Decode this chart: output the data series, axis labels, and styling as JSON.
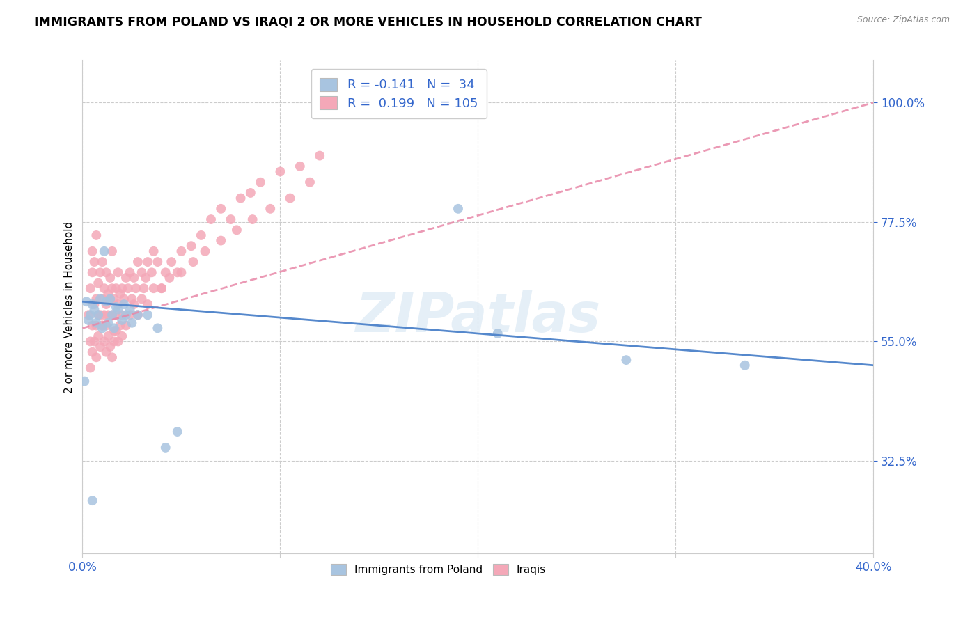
{
  "title": "IMMIGRANTS FROM POLAND VS IRAQI 2 OR MORE VEHICLES IN HOUSEHOLD CORRELATION CHART",
  "source": "Source: ZipAtlas.com",
  "ylabel": "2 or more Vehicles in Household",
  "ytick_labels": [
    "100.0%",
    "77.5%",
    "55.0%",
    "32.5%"
  ],
  "ytick_values": [
    1.0,
    0.775,
    0.55,
    0.325
  ],
  "xmin": 0.0,
  "xmax": 0.4,
  "ymin": 0.15,
  "ymax": 1.08,
  "color_poland": "#a8c4e0",
  "color_iraq": "#f4a8b8",
  "color_poland_line": "#5588cc",
  "color_iraq_line": "#e888a8",
  "color_text_blue": "#3366cc",
  "poland_x": [
    0.001,
    0.002,
    0.003,
    0.004,
    0.005,
    0.006,
    0.007,
    0.008,
    0.009,
    0.01,
    0.011,
    0.012,
    0.013,
    0.014,
    0.015,
    0.016,
    0.017,
    0.018,
    0.02,
    0.021,
    0.022,
    0.024,
    0.025,
    0.028,
    0.033,
    0.038,
    0.042,
    0.048,
    0.005,
    0.19,
    0.21,
    0.275,
    0.335
  ],
  "poland_y": [
    0.475,
    0.625,
    0.59,
    0.6,
    0.62,
    0.61,
    0.585,
    0.6,
    0.63,
    0.575,
    0.72,
    0.625,
    0.585,
    0.63,
    0.6,
    0.575,
    0.615,
    0.61,
    0.59,
    0.62,
    0.6,
    0.61,
    0.585,
    0.6,
    0.6,
    0.575,
    0.35,
    0.38,
    0.25,
    0.8,
    0.565,
    0.515,
    0.505
  ],
  "iraq_x": [
    0.003,
    0.004,
    0.004,
    0.005,
    0.005,
    0.005,
    0.006,
    0.006,
    0.007,
    0.007,
    0.007,
    0.008,
    0.008,
    0.009,
    0.009,
    0.01,
    0.01,
    0.01,
    0.011,
    0.011,
    0.012,
    0.012,
    0.012,
    0.013,
    0.013,
    0.014,
    0.014,
    0.015,
    0.015,
    0.015,
    0.016,
    0.016,
    0.017,
    0.017,
    0.018,
    0.018,
    0.019,
    0.02,
    0.02,
    0.021,
    0.022,
    0.023,
    0.024,
    0.025,
    0.026,
    0.027,
    0.028,
    0.03,
    0.031,
    0.032,
    0.033,
    0.035,
    0.036,
    0.038,
    0.04,
    0.042,
    0.045,
    0.048,
    0.05,
    0.055,
    0.06,
    0.065,
    0.07,
    0.075,
    0.08,
    0.085,
    0.09,
    0.1,
    0.11,
    0.12,
    0.004,
    0.005,
    0.006,
    0.007,
    0.008,
    0.009,
    0.01,
    0.011,
    0.012,
    0.013,
    0.014,
    0.015,
    0.016,
    0.017,
    0.018,
    0.019,
    0.02,
    0.022,
    0.024,
    0.026,
    0.028,
    0.03,
    0.033,
    0.036,
    0.04,
    0.044,
    0.05,
    0.056,
    0.062,
    0.07,
    0.078,
    0.086,
    0.095,
    0.105,
    0.115
  ],
  "iraq_y": [
    0.6,
    0.65,
    0.55,
    0.72,
    0.68,
    0.58,
    0.7,
    0.62,
    0.75,
    0.63,
    0.58,
    0.66,
    0.6,
    0.68,
    0.6,
    0.63,
    0.7,
    0.58,
    0.65,
    0.6,
    0.68,
    0.62,
    0.58,
    0.64,
    0.6,
    0.67,
    0.63,
    0.65,
    0.6,
    0.72,
    0.57,
    0.63,
    0.65,
    0.6,
    0.62,
    0.68,
    0.64,
    0.65,
    0.6,
    0.63,
    0.67,
    0.65,
    0.68,
    0.63,
    0.67,
    0.65,
    0.7,
    0.68,
    0.65,
    0.67,
    0.7,
    0.68,
    0.72,
    0.7,
    0.65,
    0.68,
    0.7,
    0.68,
    0.72,
    0.73,
    0.75,
    0.78,
    0.8,
    0.78,
    0.82,
    0.83,
    0.85,
    0.87,
    0.88,
    0.9,
    0.5,
    0.53,
    0.55,
    0.52,
    0.56,
    0.54,
    0.58,
    0.55,
    0.53,
    0.56,
    0.54,
    0.52,
    0.55,
    0.57,
    0.55,
    0.58,
    0.56,
    0.58,
    0.6,
    0.62,
    0.6,
    0.63,
    0.62,
    0.65,
    0.65,
    0.67,
    0.68,
    0.7,
    0.72,
    0.74,
    0.76,
    0.78,
    0.8,
    0.82,
    0.85
  ],
  "poland_line_x": [
    0.0,
    0.4
  ],
  "poland_line_y": [
    0.625,
    0.505
  ],
  "iraq_line_x": [
    0.0,
    0.4
  ],
  "iraq_line_y": [
    0.575,
    1.0
  ]
}
